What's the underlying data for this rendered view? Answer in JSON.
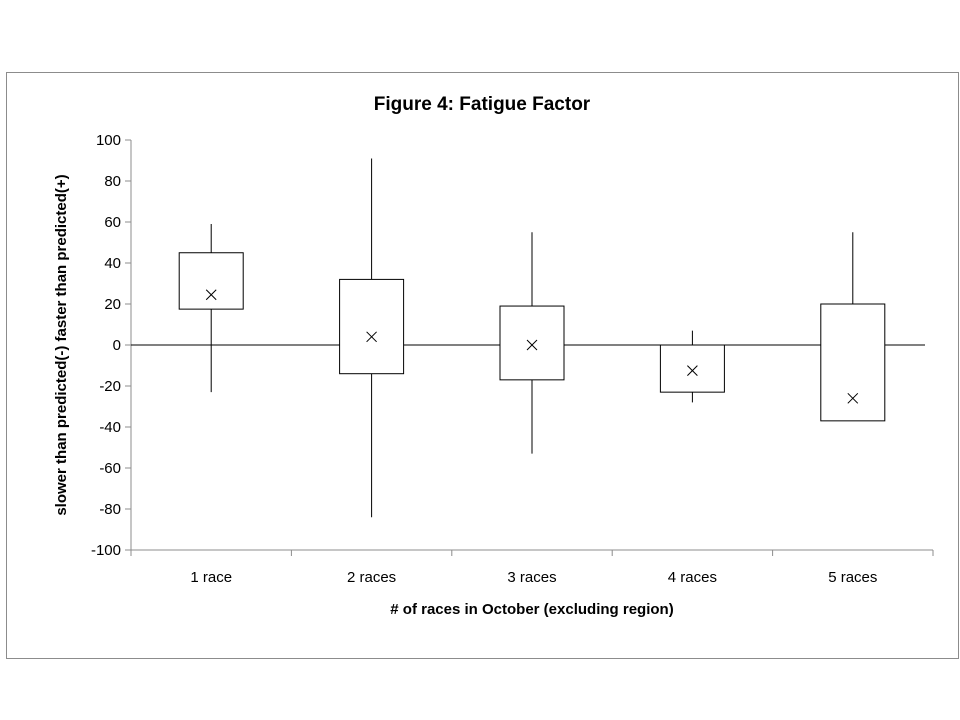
{
  "chart_data": {
    "type": "box",
    "title": "Figure 4: Fatigue Factor",
    "xlabel": "# of races in October (excluding region)",
    "ylabel": "slower than predicted(-) faster than predicted(+)",
    "categories": [
      "1 race",
      "2 races",
      "3 races",
      "4 races",
      "5 races"
    ],
    "ylim": [
      -100,
      100
    ],
    "yticks": [
      100,
      80,
      60,
      40,
      20,
      0,
      -20,
      -40,
      -60,
      -80,
      -100
    ],
    "grid": false,
    "legend": "none",
    "series": [
      {
        "category": "1 race",
        "max": 59,
        "q3": 45,
        "mean": 24.5,
        "q1": 17.5,
        "min": -23
      },
      {
        "category": "2 races",
        "max": 91,
        "q3": 32,
        "mean": 4,
        "q1": -14,
        "min": -84
      },
      {
        "category": "3 races",
        "max": 55,
        "q3": 19,
        "mean": 0,
        "q1": -17,
        "min": -53
      },
      {
        "category": "4 races",
        "max": 7,
        "q3": 0,
        "mean": -12.5,
        "q1": -23,
        "min": -28
      },
      {
        "category": "5 races",
        "max": 55,
        "q3": 20,
        "mean": -26,
        "q1": -37,
        "min": -37
      }
    ],
    "colors": {
      "stroke": "#000000",
      "axis": "#8c8c8c",
      "box_fill": "#ffffff"
    }
  }
}
